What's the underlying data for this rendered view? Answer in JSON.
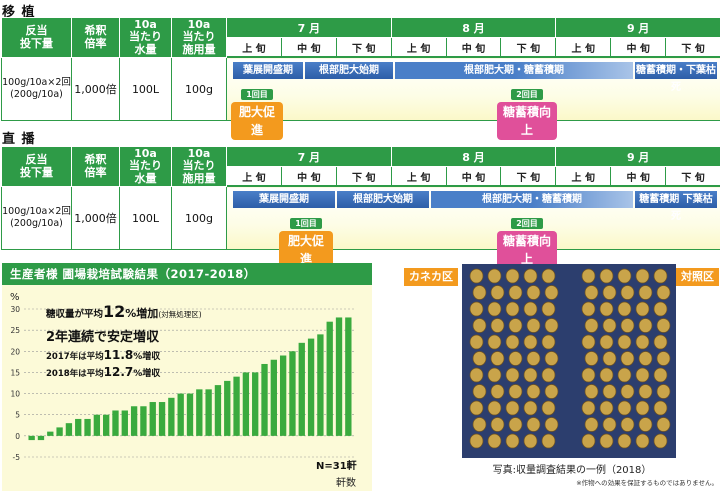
{
  "sections": [
    {
      "title": "移 植",
      "headers": {
        "rate": "反当\n投下量",
        "dilution": "希釈\n倍率",
        "water": "10a\n当たり\n水量",
        "amount": "10a\n当たり\n施用量"
      },
      "months": [
        "7 月",
        "8 月",
        "9 月"
      ],
      "decades": [
        "上 旬",
        "中 旬",
        "下 旬",
        "上 旬",
        "中 旬",
        "下 旬",
        "上 旬",
        "中 旬",
        "下 旬"
      ],
      "values": {
        "rate": "100g/10a×2回\n(200g/10a)",
        "dilution": "1,000倍",
        "water": "100L",
        "amount": "100g"
      },
      "stages": [
        "葉展開盛期",
        "根部肥大始期",
        "根部肥大期・糖蓄積期",
        "糖蓄積期・下葉枯死"
      ],
      "apps": [
        {
          "num": "1回目",
          "label": "肥大促進"
        },
        {
          "num": "2回目",
          "label": "糖蓄積向上"
        }
      ]
    },
    {
      "title": "直 播",
      "headers": {
        "rate": "反当\n投下量",
        "dilution": "希釈\n倍率",
        "water": "10a\n当たり\n水量",
        "amount": "10a\n当たり\n施用量"
      },
      "months": [
        "7 月",
        "8 月",
        "9 月"
      ],
      "decades": [
        "上 旬",
        "中 旬",
        "下 旬",
        "上 旬",
        "中 旬",
        "下 旬",
        "上 旬",
        "中 旬",
        "下 旬"
      ],
      "values": {
        "rate": "100g/10a×2回\n(200g/10a)",
        "dilution": "1,000倍",
        "water": "100L",
        "amount": "100g"
      },
      "stages": [
        "葉展開盛期",
        "根部肥大始期",
        "根部肥大期・糖蓄積期",
        "糖蓄積期 下葉枯死"
      ],
      "apps": [
        {
          "num": "1回目",
          "label": "肥大促進"
        },
        {
          "num": "2回目",
          "label": "糖蓄積向上"
        }
      ]
    }
  ],
  "chart": {
    "panel_title": "生産者様 圃場栽培試験結果（2017-2018）",
    "headline_prefix": "糖収量が平均",
    "headline_big": "12",
    "headline_suffix": "%増加",
    "headline_note": "(対無処理区)",
    "subhead": "2年連続で安定増収",
    "line2017_prefix": "2017年は平均",
    "line2017_value": "11.8",
    "line2017_suffix": "%増収",
    "line2018_prefix": "2018年は平均",
    "line2018_value": "12.7",
    "line2018_suffix": "%増収",
    "n_label": "N=31軒",
    "colors": {
      "bar": "#3aaa3e",
      "panel": "#fcfad8",
      "title_bg": "#2e9b47"
    }
  },
  "chart_data": {
    "type": "bar",
    "ylabel": "%",
    "xlabel": "軒数",
    "ylim": [
      -5,
      30
    ],
    "yticks": [
      -5,
      0,
      5,
      10,
      15,
      20,
      25,
      30
    ],
    "grid": true,
    "values": [
      -1,
      -1,
      1,
      2,
      3,
      4,
      4,
      5,
      5,
      6,
      6,
      7,
      7,
      8,
      8,
      9,
      10,
      10,
      11,
      11,
      12,
      13,
      14,
      15,
      15,
      17,
      18,
      19,
      20,
      22,
      23,
      24,
      27,
      28,
      28
    ]
  },
  "photo": {
    "label_left": "カネカ区",
    "label_right": "対照区",
    "caption": "写真:収量調査結果の一例（2018）",
    "note": "※作物への効果を保証するものではありません。",
    "colors": {
      "left": "#f39a1e",
      "right": "#f39a1e",
      "bg": "#2c3e6e",
      "tuber": "#c9a44a"
    }
  }
}
